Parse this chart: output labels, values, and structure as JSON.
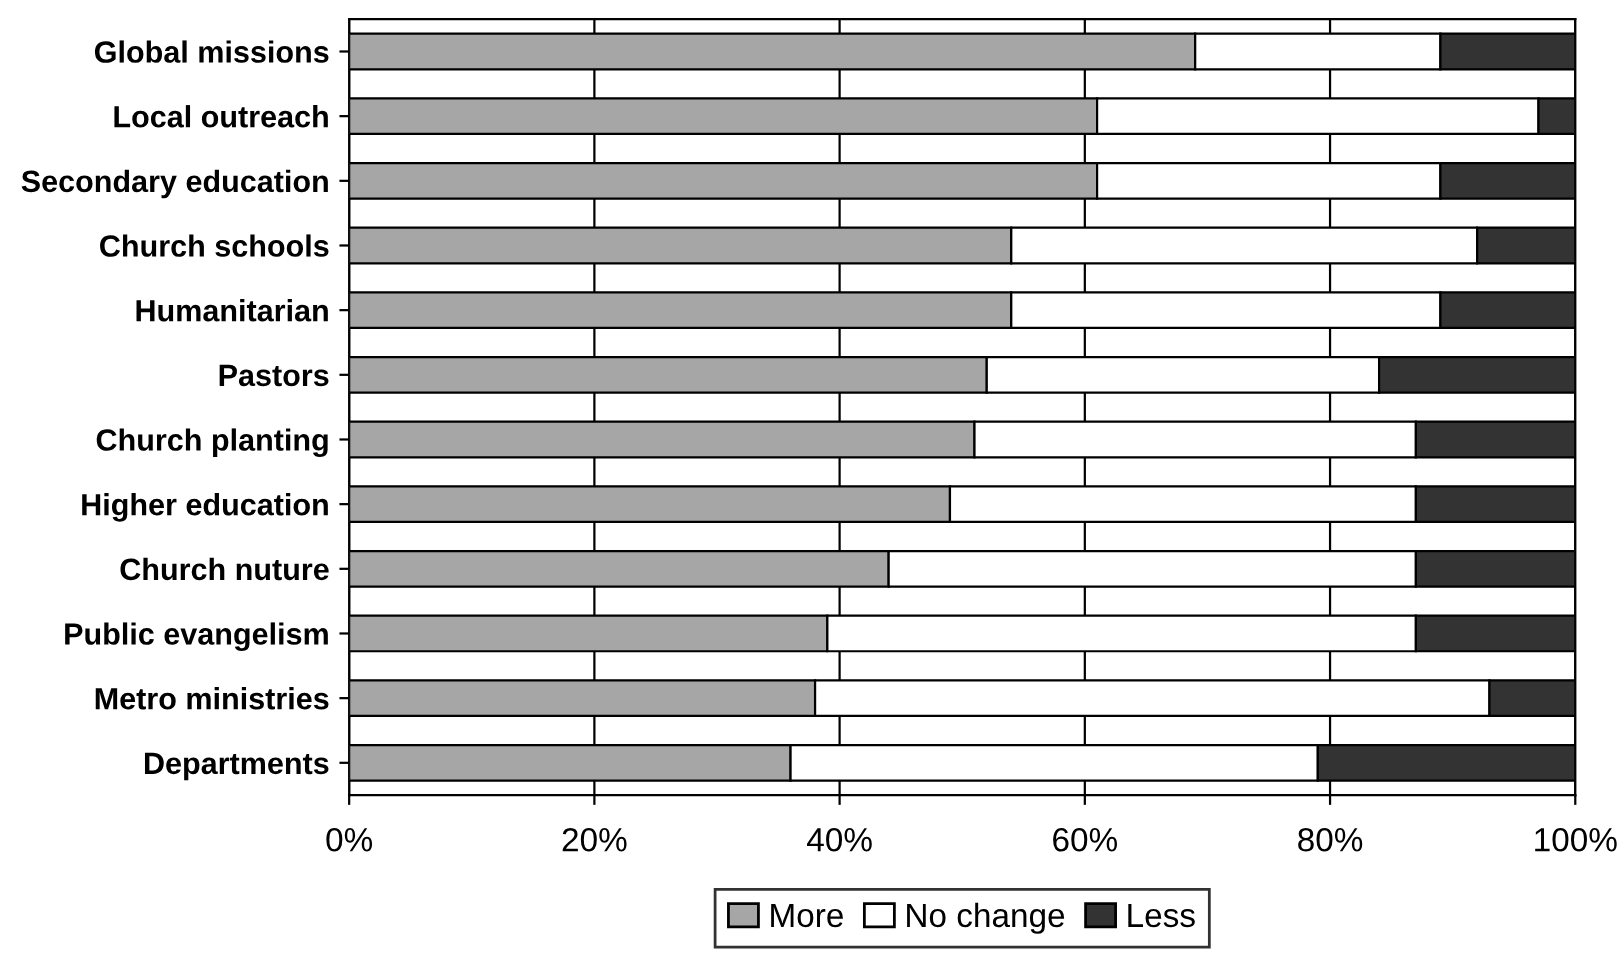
{
  "chart_data": {
    "type": "bar",
    "orientation": "horizontal",
    "stacked": true,
    "categories": [
      "Global missions",
      "Local outreach",
      "Secondary education",
      "Church schools",
      "Humanitarian",
      "Pastors",
      "Church planting",
      "Higher education",
      "Church nuture",
      "Public evangelism",
      "Metro ministries",
      "Departments"
    ],
    "series": [
      {
        "name": "More",
        "color": "#a6a6a6",
        "values": [
          69,
          61,
          61,
          54,
          54,
          52,
          51,
          49,
          44,
          39,
          38,
          36
        ]
      },
      {
        "name": "No change",
        "color": "#ffffff",
        "values": [
          20,
          36,
          28,
          38,
          35,
          32,
          36,
          38,
          43,
          48,
          55,
          43
        ]
      },
      {
        "name": "Less",
        "color": "#333333",
        "values": [
          11,
          3,
          11,
          8,
          11,
          16,
          13,
          13,
          13,
          13,
          7,
          21
        ]
      }
    ],
    "xlim": [
      0,
      100
    ],
    "xticks": [
      {
        "value": 0,
        "label": "0%"
      },
      {
        "value": 20,
        "label": "20%"
      },
      {
        "value": 40,
        "label": "40%"
      },
      {
        "value": 60,
        "label": "60%"
      },
      {
        "value": 80,
        "label": "80%"
      },
      {
        "value": 100,
        "label": "100%"
      }
    ],
    "grid": "x",
    "legend": "bottom"
  }
}
